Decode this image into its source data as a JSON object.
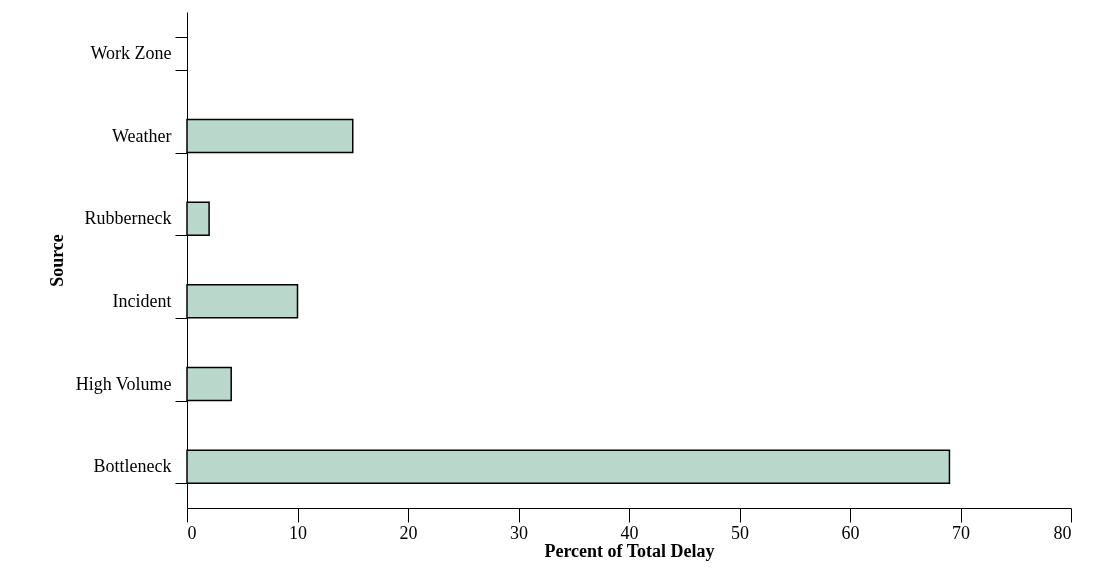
{
  "chart_data": {
    "type": "bar",
    "orientation": "horizontal",
    "xlabel": "Percent of Total Delay",
    "ylabel": "Source",
    "categories": [
      "Work Zone",
      "Weather",
      "Rubberneck",
      "Incident",
      "High Volume",
      "Bottleneck"
    ],
    "values": [
      null,
      15,
      2,
      10,
      4,
      69
    ],
    "color": "#b9d7cb",
    "xlim": [
      0,
      80
    ],
    "xticks": [
      0,
      10,
      20,
      30,
      40,
      50,
      60,
      70,
      80
    ],
    "grid": false
  }
}
